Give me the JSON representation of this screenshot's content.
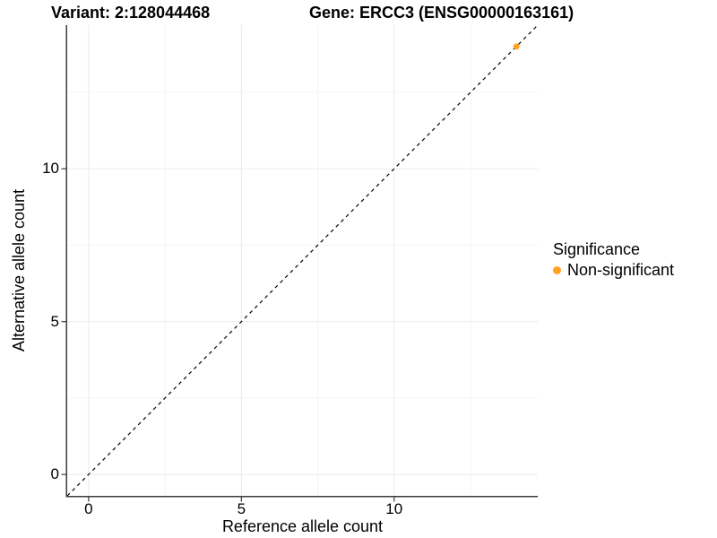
{
  "titles": {
    "variant": "Variant: 2:128044468",
    "gene": "Gene: ERCC3 (ENSG00000163161)"
  },
  "chart_data": {
    "type": "scatter",
    "xlabel": "Reference allele count",
    "ylabel": "Alternative allele count",
    "xlim": [
      -0.7,
      14.7
    ],
    "ylim": [
      -0.7,
      14.7
    ],
    "x_ticks": [
      0,
      5,
      10
    ],
    "y_ticks": [
      0,
      5,
      10
    ],
    "x_minor_ticks": [
      2.5,
      7.5,
      12.5
    ],
    "y_minor_ticks": [
      2.5,
      7.5,
      12.5
    ],
    "grid": "major and minor, very light gray on white panel",
    "reference_line": {
      "type": "abline",
      "slope": 1,
      "intercept": 0,
      "style": "dashed",
      "color": "#000000"
    },
    "series": [
      {
        "name": "Non-significant",
        "color": "#FFA320",
        "points": [
          {
            "x": 14,
            "y": 14
          }
        ]
      }
    ],
    "legend": {
      "title": "Significance",
      "position": "right",
      "entries": [
        {
          "label": "Non-significant",
          "color": "#FFA320"
        }
      ]
    }
  },
  "colors": {
    "background": "#ffffff",
    "axis_line": "#3c3c3c",
    "grid_major": "#ebebeb",
    "grid_minor": "#f5f5f5",
    "point": "#FFA320",
    "text": "#000000"
  }
}
